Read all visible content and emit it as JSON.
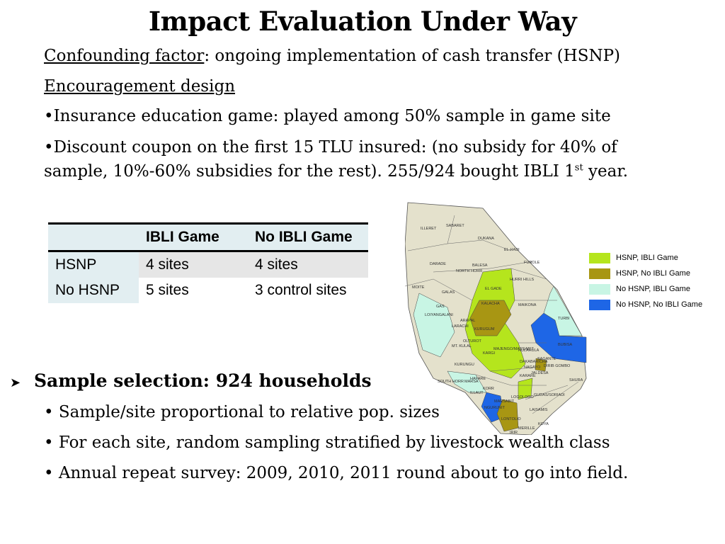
{
  "title": "Impact Evaluation Under Way",
  "confounding": {
    "label": "Confounding factor",
    "text": ": ongoing implementation of cash transfer (HSNP)"
  },
  "encouragement": "Encouragement design",
  "bullets_top": [
    "•Insurance education game: played among 50% sample in game site",
    "•Discount coupon on the first 15 TLU insured: (no subsidy for 40% of",
    "sample, 10%-60% subsidies for the rest). 255/924 bought IBLI 1"
  ],
  "sup_st": "st",
  "year_suffix": " year.",
  "table": {
    "headers": [
      "",
      "IBLI Game",
      "No IBLI Game"
    ],
    "rows": [
      {
        "label": "HSNP",
        "c1": "4 sites",
        "c2": "4 sites"
      },
      {
        "label": "No HSNP",
        "c1": "5 sites",
        "c2": "3 control sites"
      }
    ]
  },
  "sample_heading": "Sample selection: 924 households",
  "bullets_bottom": [
    "• Sample/site proportional to relative pop. sizes",
    "• For each site, random sampling stratified by livestock wealth class",
    "• Annual repeat survey: 2009, 2010, 2011 round about to go into field."
  ],
  "legend": [
    {
      "label": "HSNP, IBLI Game",
      "color": "#b5e51d"
    },
    {
      "label": "HSNP, No IBLI Game",
      "color": "#a89613"
    },
    {
      "label": "No HSNP, IBLI Game",
      "color": "#c8f5e4"
    },
    {
      "label": "No HSNP, No IBLI Game",
      "color": "#1e66e6"
    }
  ],
  "map_labels": [
    "ILLERET",
    "SABARET",
    "DUKANA",
    "EL-HADI",
    "DARADE",
    "BALESA",
    "FUROLE",
    "NORTH HORR",
    "HURRI HILLS",
    "MOITE",
    "GALAS",
    "EL GADE",
    "KALACHA",
    "MAIKONA",
    "GAS",
    "LOIYANGALANI",
    "ARAPAL",
    "LARACHI",
    "TURBI",
    "KURUGUM",
    "OLTUROT",
    "MT. KULAL",
    "BUBISA",
    "MAJENGO/MARSABIT",
    "KARGI",
    "HULAHULA",
    "SAGANTE",
    "DAKABARICHA",
    "NAGAYO",
    "DIRIB GOMBO",
    "JALDESA",
    "KARARE",
    "KURUNGU",
    "SOUTH HORR",
    "MARSA",
    "HAFARE",
    "SHURA",
    "KORR",
    "LOGOLOGO",
    "GUDAS/SORIADI",
    "ILLAUT",
    "MARSABIT",
    "LAISAMIS",
    "NGURUNIT",
    "LONTOLIO",
    "KOYA",
    "MERILLE",
    "IRIR"
  ]
}
